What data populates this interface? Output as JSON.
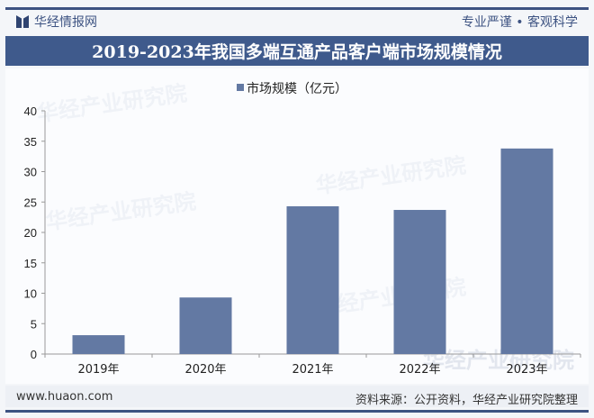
{
  "header": {
    "brand": "华经情报网",
    "slogan": "专业严谨 • 客观科学",
    "title": "2019-2023年我国多端互通产品客户端市场规模情况"
  },
  "footer": {
    "url": "www.huaon.com",
    "source": "资料来源：公开资料，华经产业研究院整理"
  },
  "watermark": "华经产业研究院",
  "chart_data": {
    "type": "bar",
    "title": "2019-2023年我国多端互通产品客户端市场规模情况",
    "categories": [
      "2019年",
      "2020年",
      "2021年",
      "2022年",
      "2023年"
    ],
    "series": [
      {
        "name": "市场规模（亿元）",
        "values": [
          3.1,
          9.3,
          24.3,
          23.7,
          33.8
        ],
        "color": "#6379a3"
      }
    ],
    "ylim": [
      0,
      40
    ],
    "yticks": [
      0,
      5,
      10,
      15,
      20,
      25,
      30,
      35,
      40
    ],
    "legend": "top-center",
    "grid": false
  }
}
